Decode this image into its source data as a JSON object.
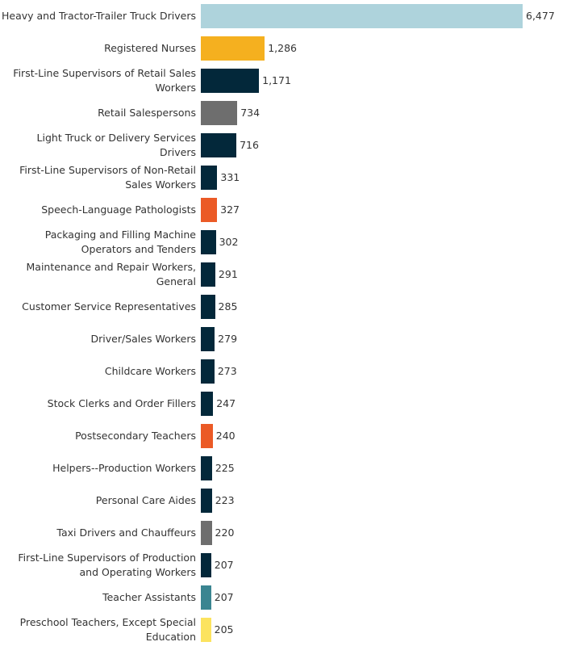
{
  "chart_data": {
    "type": "bar",
    "orientation": "horizontal",
    "title": "",
    "xlabel": "",
    "ylabel": "",
    "xlim": [
      0,
      6477
    ],
    "grid": false,
    "legend": "none",
    "categories": [
      "Heavy and Tractor-Trailer Truck Drivers",
      "Registered Nurses",
      "First-Line Supervisors of Retail Sales Workers",
      "Retail Salespersons",
      "Light Truck or Delivery Services Drivers",
      "First-Line Supervisors of Non-Retail Sales Workers",
      "Speech-Language Pathologists",
      "Packaging and Filling Machine Operators and Tenders",
      "Maintenance and Repair Workers, General",
      "Customer Service Representatives",
      "Driver/Sales Workers",
      "Childcare Workers",
      "Stock Clerks and Order Fillers",
      "Postsecondary Teachers",
      "Helpers--Production Workers",
      "Personal Care Aides",
      "Taxi Drivers and Chauffeurs",
      "First-Line Supervisors of Production and Operating Workers",
      "Teacher Assistants",
      "Preschool Teachers, Except Special Education"
    ],
    "label_lines": [
      [
        "Heavy and Tractor-Trailer Truck Drivers"
      ],
      [
        "Registered Nurses"
      ],
      [
        "First-Line Supervisors of Retail Sales",
        "Workers"
      ],
      [
        "Retail Salespersons"
      ],
      [
        "Light Truck or Delivery Services Drivers"
      ],
      [
        "First-Line Supervisors of Non-Retail",
        "Sales Workers"
      ],
      [
        "Speech-Language Pathologists"
      ],
      [
        "Packaging and Filling Machine",
        "Operators and Tenders"
      ],
      [
        "Maintenance and Repair Workers,",
        "General"
      ],
      [
        "Customer Service Representatives"
      ],
      [
        "Driver/Sales Workers"
      ],
      [
        "Childcare Workers"
      ],
      [
        "Stock Clerks and Order Fillers"
      ],
      [
        "Postsecondary Teachers"
      ],
      [
        "Helpers--Production Workers"
      ],
      [
        "Personal Care Aides"
      ],
      [
        "Taxi Drivers and Chauffeurs"
      ],
      [
        "First-Line Supervisors of Production",
        "and Operating Workers"
      ],
      [
        "Teacher Assistants"
      ],
      [
        "Preschool Teachers, Except Special",
        "Education"
      ]
    ],
    "values": [
      6477,
      1286,
      1171,
      734,
      716,
      331,
      327,
      302,
      291,
      285,
      279,
      273,
      247,
      240,
      225,
      223,
      220,
      207,
      207,
      205
    ],
    "value_labels": [
      "6,477",
      "1,286",
      "1,171",
      "734",
      "716",
      "331",
      "327",
      "302",
      "291",
      "285",
      "279",
      "273",
      "247",
      "240",
      "225",
      "223",
      "220",
      "207",
      "207",
      "205"
    ],
    "colors": [
      "#aed3dc",
      "#f5b01f",
      "#03283a",
      "#6e6e6e",
      "#03283a",
      "#03283a",
      "#eb5a26",
      "#03283a",
      "#03283a",
      "#03283a",
      "#03283a",
      "#03283a",
      "#03283a",
      "#eb5a26",
      "#03283a",
      "#03283a",
      "#6e6e6e",
      "#03283a",
      "#3a8591",
      "#fce35f"
    ]
  }
}
